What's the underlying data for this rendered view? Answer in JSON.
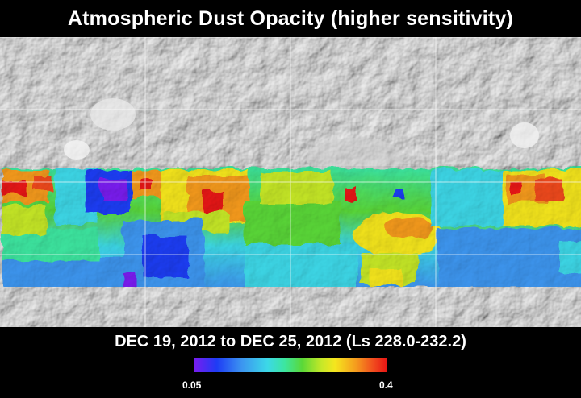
{
  "title": "Atmospheric Dust Opacity (higher sensitivity)",
  "date_range": "DEC 19, 2012 to DEC 25, 2012 (Ls 228.0-232.2)",
  "legend": {
    "min_label": "0.05",
    "max_label": "0.4",
    "min_value": 0.05,
    "max_value": 0.4,
    "colors": [
      "#7a1cf0",
      "#1e3cf5",
      "#3c96f0",
      "#3cd8e8",
      "#3ce6a0",
      "#5ad838",
      "#c6e828",
      "#f5e61e",
      "#f59a1e",
      "#f04a1e",
      "#e81414"
    ]
  },
  "map": {
    "basemap": "shaded-relief",
    "gridlines": true,
    "data_band": "equatorial"
  }
}
